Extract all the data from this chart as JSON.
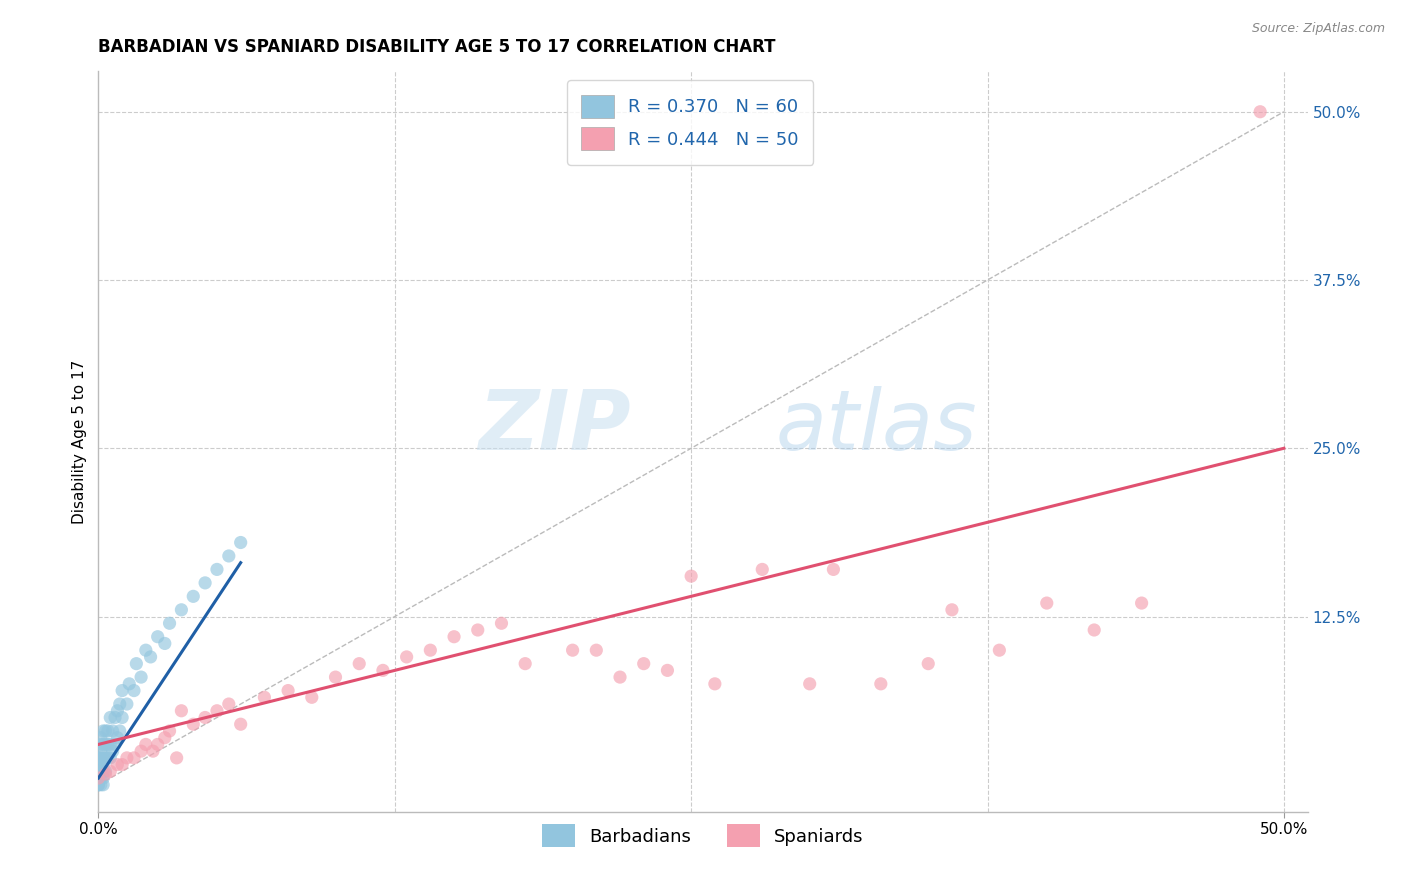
{
  "title": "BARBADIAN VS SPANIARD DISABILITY AGE 5 TO 17 CORRELATION CHART",
  "source_text": "Source: ZipAtlas.com",
  "ylabel": "Disability Age 5 to 17",
  "barbadian_R": 0.37,
  "barbadian_N": 60,
  "spaniard_R": 0.444,
  "spaniard_N": 50,
  "barbadian_color": "#92C5DE",
  "spaniard_color": "#F4A0B0",
  "barbadian_line_color": "#1F5FA6",
  "spaniard_line_color": "#E05070",
  "dot_size": 90,
  "dot_alpha": 0.65,
  "legend_label_barbadians": "Barbadians",
  "legend_label_spaniards": "Spaniards",
  "background_color": "#FFFFFF",
  "grid_color": "#CCCCCC",
  "watermark_zip": "ZIP",
  "watermark_atlas": "atlas",
  "x_lim": [
    0.0,
    0.51
  ],
  "y_lim": [
    -0.02,
    0.53
  ],
  "barbadian_points_x": [
    0.0,
    0.0,
    0.0,
    0.0,
    0.0,
    0.0,
    0.0,
    0.0,
    0.0,
    0.0,
    0.001,
    0.001,
    0.001,
    0.001,
    0.001,
    0.001,
    0.001,
    0.001,
    0.002,
    0.002,
    0.002,
    0.002,
    0.002,
    0.002,
    0.003,
    0.003,
    0.003,
    0.003,
    0.004,
    0.004,
    0.004,
    0.005,
    0.005,
    0.005,
    0.006,
    0.006,
    0.007,
    0.007,
    0.008,
    0.008,
    0.009,
    0.009,
    0.01,
    0.01,
    0.012,
    0.013,
    0.015,
    0.016,
    0.018,
    0.02,
    0.022,
    0.025,
    0.028,
    0.03,
    0.035,
    0.04,
    0.045,
    0.05,
    0.055,
    0.06
  ],
  "barbadian_points_y": [
    0.0,
    0.0,
    0.005,
    0.005,
    0.01,
    0.01,
    0.015,
    0.015,
    0.02,
    0.02,
    0.0,
    0.005,
    0.01,
    0.015,
    0.02,
    0.025,
    0.03,
    0.035,
    0.0,
    0.005,
    0.01,
    0.02,
    0.03,
    0.04,
    0.01,
    0.02,
    0.03,
    0.04,
    0.02,
    0.03,
    0.04,
    0.02,
    0.03,
    0.05,
    0.025,
    0.04,
    0.03,
    0.05,
    0.035,
    0.055,
    0.04,
    0.06,
    0.05,
    0.07,
    0.06,
    0.075,
    0.07,
    0.09,
    0.08,
    0.1,
    0.095,
    0.11,
    0.105,
    0.12,
    0.13,
    0.14,
    0.15,
    0.16,
    0.17,
    0.18
  ],
  "spaniard_points_x": [
    0.0,
    0.003,
    0.005,
    0.008,
    0.01,
    0.012,
    0.015,
    0.018,
    0.02,
    0.023,
    0.025,
    0.028,
    0.03,
    0.033,
    0.035,
    0.04,
    0.045,
    0.05,
    0.055,
    0.06,
    0.07,
    0.08,
    0.09,
    0.1,
    0.11,
    0.12,
    0.13,
    0.14,
    0.15,
    0.16,
    0.17,
    0.18,
    0.2,
    0.21,
    0.22,
    0.23,
    0.24,
    0.25,
    0.26,
    0.28,
    0.3,
    0.31,
    0.33,
    0.35,
    0.36,
    0.38,
    0.4,
    0.42,
    0.44,
    0.49
  ],
  "spaniard_points_y": [
    0.005,
    0.008,
    0.01,
    0.015,
    0.015,
    0.02,
    0.02,
    0.025,
    0.03,
    0.025,
    0.03,
    0.035,
    0.04,
    0.02,
    0.055,
    0.045,
    0.05,
    0.055,
    0.06,
    0.045,
    0.065,
    0.07,
    0.065,
    0.08,
    0.09,
    0.085,
    0.095,
    0.1,
    0.11,
    0.115,
    0.12,
    0.09,
    0.1,
    0.1,
    0.08,
    0.09,
    0.085,
    0.155,
    0.075,
    0.16,
    0.075,
    0.16,
    0.075,
    0.09,
    0.13,
    0.1,
    0.135,
    0.115,
    0.135,
    0.5
  ],
  "barbadian_trend_x": [
    0.0,
    0.06
  ],
  "barbadian_trend_y": [
    0.005,
    0.165
  ],
  "spaniard_trend_x": [
    0.0,
    0.5
  ],
  "spaniard_trend_y": [
    0.03,
    0.25
  ],
  "title_fontsize": 12,
  "axis_label_fontsize": 11,
  "tick_fontsize": 11,
  "legend_fontsize": 13
}
